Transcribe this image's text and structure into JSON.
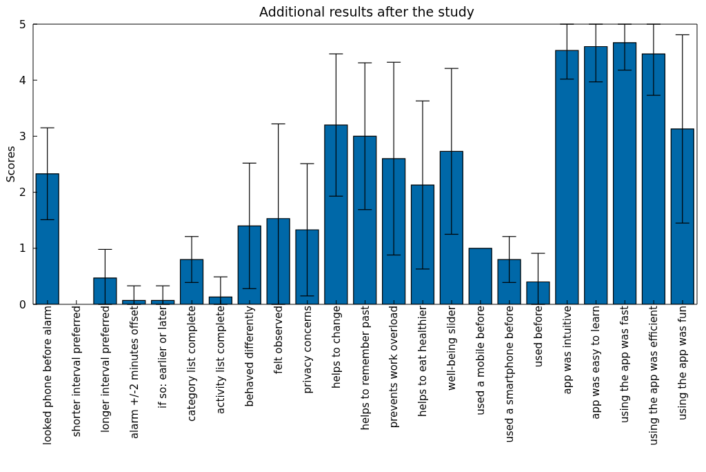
{
  "chart_data": {
    "type": "bar",
    "title": "Additional results after the study",
    "ylabel": "Scores",
    "categories": [
      "looked phone before alarm",
      "shorter interval preferred",
      "longer interval preferred",
      "alarm +/-2 minutes offset",
      "if so: earlier or later",
      "category list complete",
      "activity list complete",
      "behaved differently",
      "felt observed",
      "privacy concerns",
      "helps to change",
      "helps to remember past",
      "prevents work overload",
      "helps to eat healthier",
      "well-being slider",
      "used a mobile before",
      "used a smartphone before",
      "used before",
      "app was intuitive",
      "app was easy to learn",
      "using the app was fast",
      "using the app was efficient",
      "using the app was fun"
    ],
    "values": [
      2.33,
      0,
      0.47,
      0.07,
      0.07,
      0.8,
      0.13,
      1.4,
      1.53,
      1.33,
      3.2,
      3.0,
      2.6,
      2.13,
      2.73,
      1.0,
      0.8,
      0.4,
      4.53,
      4.6,
      4.67,
      4.47,
      3.13
    ],
    "errors": [
      0.82,
      null,
      [
        0,
        0.98
      ],
      [
        0,
        0.33
      ],
      [
        0,
        0.33
      ],
      0.41,
      [
        0,
        0.49
      ],
      1.12,
      [
        0,
        3.22
      ],
      1.18,
      1.27,
      1.31,
      1.72,
      1.5,
      1.48,
      null,
      0.41,
      [
        0,
        0.91
      ],
      [
        4.02,
        5
      ],
      [
        3.97,
        5
      ],
      [
        4.18,
        5
      ],
      [
        3.73,
        5
      ],
      1.68
    ],
    "color": "#0068a8",
    "ylim": [
      0,
      5
    ],
    "yticks": [
      0,
      1,
      2,
      3,
      4,
      5
    ],
    "grid": false,
    "legend": false
  }
}
